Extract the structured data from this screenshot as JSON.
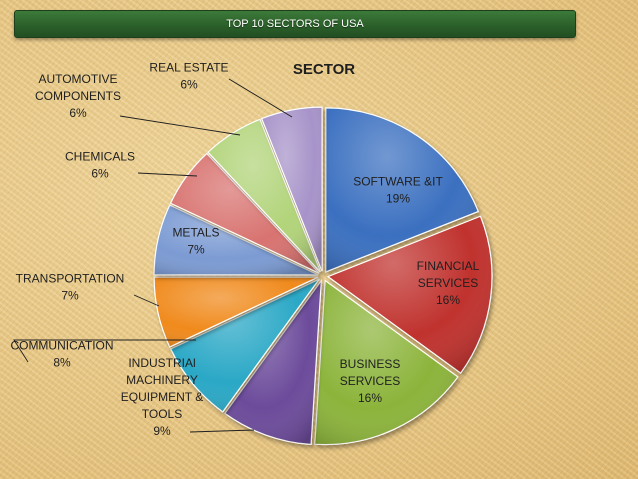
{
  "banner": {
    "title": "TOP 10 SECTORS OF USA"
  },
  "chart_data": {
    "type": "pie",
    "title": "SECTOR",
    "unit": "%",
    "slices": [
      {
        "name": "SOFTWARE &IT",
        "lines": [
          "SOFTWARE &IT"
        ],
        "value": 19,
        "color": "#3a6fc0"
      },
      {
        "name": "FINANCIAL SERVICES",
        "lines": [
          "FINANCIAL",
          "SERVICES"
        ],
        "value": 16,
        "color": "#c0302d"
      },
      {
        "name": "BUSINESS SERVICES",
        "lines": [
          "BUSINESS",
          "SERVICES"
        ],
        "value": 16,
        "color": "#8cb43a"
      },
      {
        "name": "INDUSTRIAl MACHINERY EQUIPMENT & TOOLS",
        "lines": [
          "INDUSTRIAl",
          "MACHINERY",
          "EQUIPMENT &",
          "TOOLS"
        ],
        "value": 9,
        "color": "#6c4c9b"
      },
      {
        "name": "COMMUNICATION",
        "lines": [
          "COMMUNICATION"
        ],
        "value": 8,
        "color": "#2ba8c6"
      },
      {
        "name": "TRANSPORTATION",
        "lines": [
          "TRANSPORTATION"
        ],
        "value": 7,
        "color": "#f08a1f"
      },
      {
        "name": "METALS",
        "lines": [
          "METALS"
        ],
        "value": 7,
        "color": "#7b9bd3"
      },
      {
        "name": "CHEMICALS",
        "lines": [
          "CHEMICALS"
        ],
        "value": 6,
        "color": "#d8736f"
      },
      {
        "name": "AUTOMOTIVE COMPONENTS",
        "lines": [
          "AUTOMOTIVE",
          "COMPONENTS"
        ],
        "value": 6,
        "color": "#b2d47a"
      },
      {
        "name": "REAL ESTATE",
        "lines": [
          "REAL ESTATE"
        ],
        "value": 6,
        "color": "#a793c9"
      }
    ]
  }
}
